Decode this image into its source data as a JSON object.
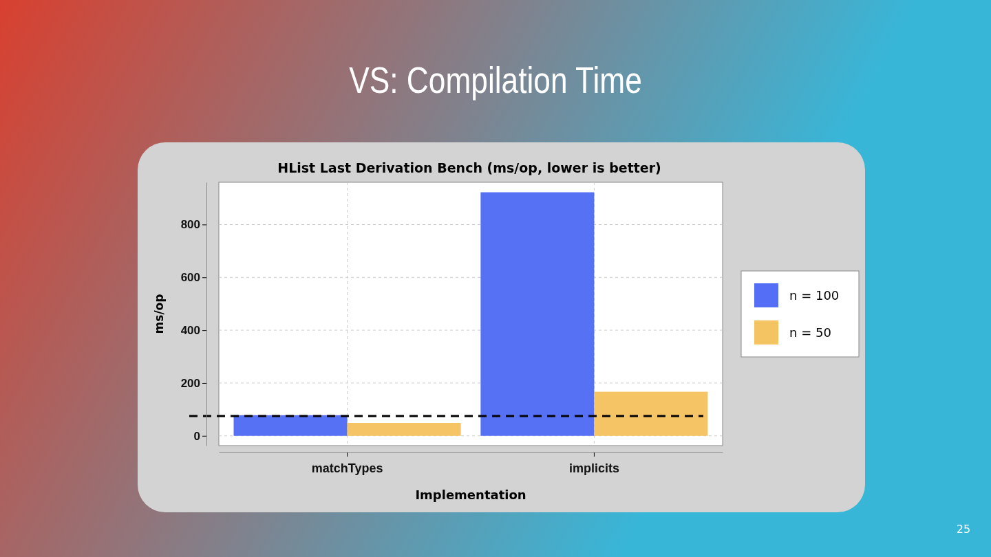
{
  "chart_data": {
    "type": "bar",
    "title": "VS: Compilation Time",
    "subtitle": "HList Last Derivation Bench (ms/op, lower is better)",
    "xlabel": "Implementation",
    "ylabel": "ms/op",
    "categories": [
      "matchTypes",
      "implicits"
    ],
    "series": [
      {
        "name": "n = 100",
        "color": "#546ef5",
        "values": [
          78,
          922
        ]
      },
      {
        "name": "n = 50",
        "color": "#f5c462",
        "values": [
          49,
          167
        ]
      }
    ],
    "ylim": [
      -37,
      960
    ],
    "yticks": [
      0,
      200,
      400,
      600,
      800
    ],
    "grid": true,
    "legend": "right",
    "ref_lines": [
      {
        "axis": "y",
        "value": 75,
        "color": "#000000",
        "line_style": "dashed"
      }
    ],
    "annotations": [
      "25"
    ]
  }
}
